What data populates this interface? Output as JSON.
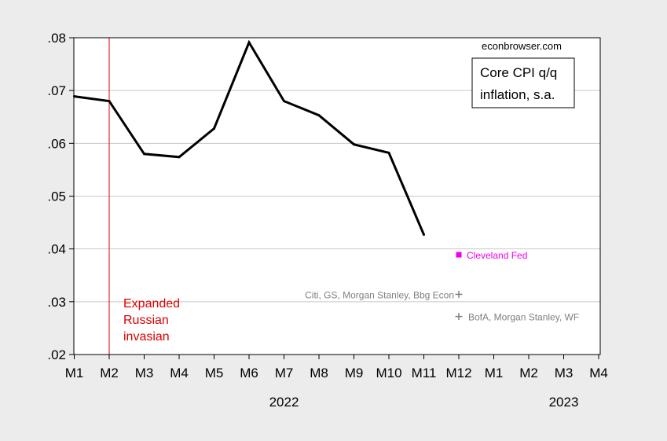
{
  "chart_data": {
    "type": "line",
    "source_label": "econbrowser.com",
    "legend": [
      "Core CPI q/q",
      "inflation, s.a."
    ],
    "x_tick_labels": [
      "M1",
      "M2",
      "M3",
      "M4",
      "M5",
      "M6",
      "M7",
      "M8",
      "M9",
      "M10",
      "M11",
      "M12",
      "M1",
      "M2",
      "M3",
      "M4"
    ],
    "year_labels": [
      {
        "label": "2022",
        "at_index": 6
      },
      {
        "label": "2023",
        "at_index": 14
      }
    ],
    "y_ticks": [
      0.02,
      0.03,
      0.04,
      0.05,
      0.06,
      0.07,
      0.08
    ],
    "y_tick_labels": [
      ".02",
      ".03",
      ".04",
      ".05",
      ".06",
      ".07",
      ".08"
    ],
    "ylim": [
      0.02,
      0.08
    ],
    "series": [
      {
        "x": [
          "2022M1",
          "2022M2",
          "2022M3",
          "2022M4",
          "2022M5",
          "2022M6",
          "2022M7",
          "2022M8",
          "2022M9",
          "2022M10",
          "2022M11"
        ],
        "values": [
          0.0689,
          0.068,
          0.058,
          0.0574,
          0.0628,
          0.0791,
          0.068,
          0.0653,
          0.0598,
          0.0582,
          0.0427
        ],
        "color": "#000000"
      }
    ],
    "forecasts": [
      {
        "name": "Cleveland Fed",
        "x": "2022M12",
        "value": 0.0389,
        "color": "#ee00ee",
        "marker": "square"
      },
      {
        "name": "Citi, GS, Morgan Stanley, Bbg Econ",
        "x": "2022M12",
        "value": 0.0314,
        "color": "#808080",
        "marker": "plus"
      },
      {
        "name": "BofA, Morgan Stanley, WF",
        "x": "2022M12",
        "value": 0.0272,
        "color": "#808080",
        "marker": "plus"
      }
    ],
    "vline": {
      "x": "2022M2",
      "color": "#dd0000",
      "label_lines": [
        "Expanded",
        "Russian",
        "invasian"
      ]
    },
    "grid": "horizontal"
  }
}
